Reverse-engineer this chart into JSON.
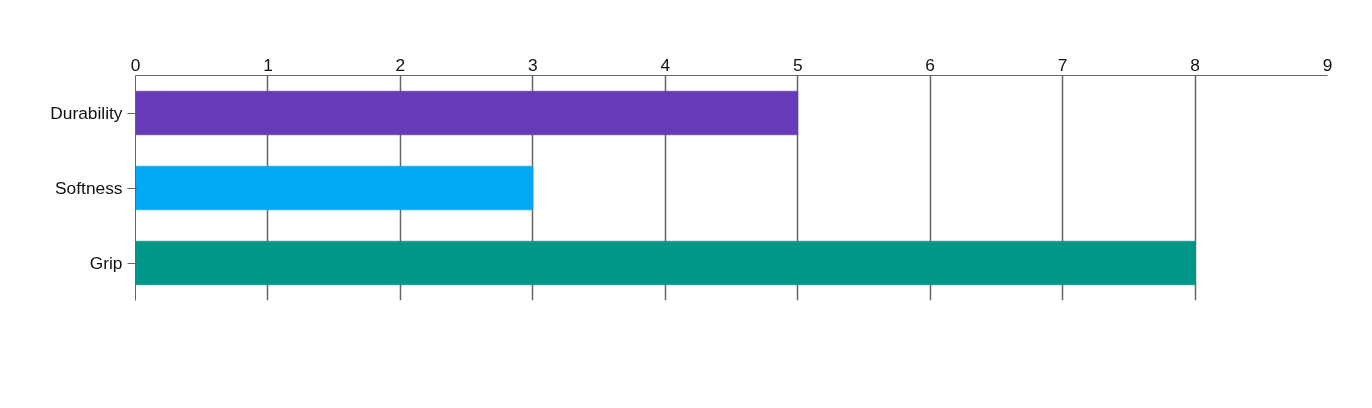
{
  "chart_data": {
    "type": "bar",
    "orientation": "horizontal",
    "categories": [
      "Durability",
      "Softness",
      "Grip"
    ],
    "values": [
      5,
      3,
      8
    ],
    "colors": [
      "#673ab7",
      "#03a9f4",
      "#009688"
    ],
    "xlim": [
      0,
      9
    ],
    "xticks": [
      0,
      1,
      2,
      3,
      4,
      5,
      6,
      7,
      8,
      9
    ],
    "grid": "x"
  }
}
